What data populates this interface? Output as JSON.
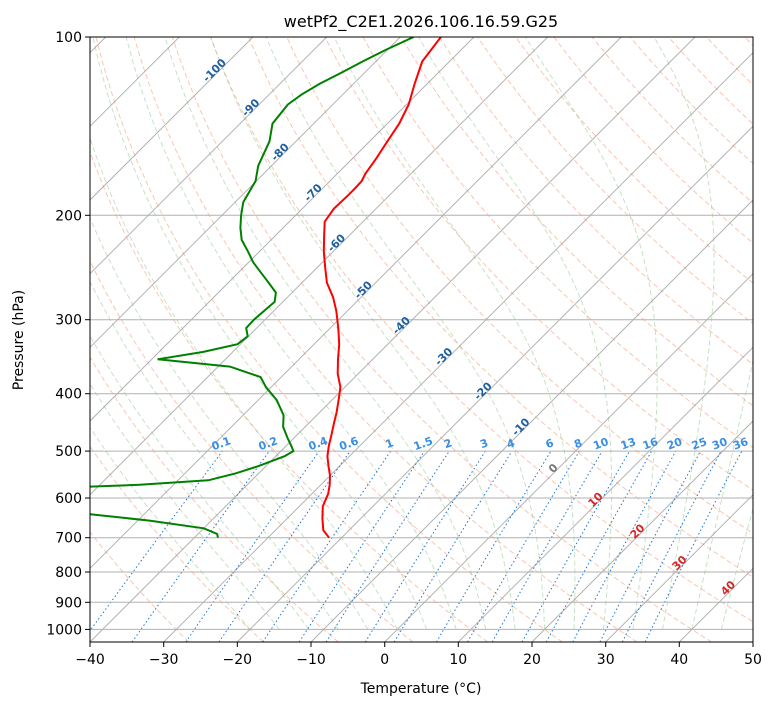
{
  "chart_data": {
    "type": "line",
    "title": "wetPf2_C2E1.2026.106.16.59.G25",
    "xlabel": "Temperature (°C)",
    "ylabel": "Pressure (hPa)",
    "xlim": [
      -40,
      50
    ],
    "ylim": [
      1050,
      100
    ],
    "y_scale": "log",
    "x_ticks": [
      -40,
      -30,
      -20,
      -10,
      0,
      10,
      20,
      30,
      40,
      50
    ],
    "x_tick_labels": [
      "−40",
      "−30",
      "−20",
      "−10",
      "0",
      "10",
      "20",
      "30",
      "40",
      "50"
    ],
    "y_ticks": [
      100,
      200,
      300,
      400,
      500,
      600,
      700,
      800,
      900,
      1000
    ],
    "y_tick_labels": [
      "100",
      "200",
      "300",
      "400",
      "500",
      "600",
      "700",
      "800",
      "900",
      "1000"
    ],
    "grid": true,
    "series": [
      {
        "color": "#ff0000",
        "points": [
          [
            -21.7,
            700
          ],
          [
            -23.5,
            680
          ],
          [
            -25.2,
            650
          ],
          [
            -26.8,
            620
          ],
          [
            -27.8,
            590
          ],
          [
            -28.8,
            570
          ],
          [
            -30.0,
            550
          ],
          [
            -31.5,
            530
          ],
          [
            -33.0,
            510
          ],
          [
            -34.2,
            490
          ],
          [
            -35.3,
            470
          ],
          [
            -36.5,
            450
          ],
          [
            -37.7,
            430
          ],
          [
            -39.1,
            410
          ],
          [
            -40.6,
            390
          ],
          [
            -42.8,
            370
          ],
          [
            -44.7,
            350
          ],
          [
            -46.6,
            330
          ],
          [
            -48.9,
            310
          ],
          [
            -51.5,
            290
          ],
          [
            -53.8,
            275
          ],
          [
            -56.6,
            260
          ],
          [
            -58.9,
            245
          ],
          [
            -61.3,
            230
          ],
          [
            -63.6,
            215
          ],
          [
            -65.2,
            205
          ],
          [
            -65.7,
            195
          ],
          [
            -65.6,
            185
          ],
          [
            -65.6,
            180
          ],
          [
            -65.7,
            175
          ],
          [
            -66.2,
            170
          ],
          [
            -66.8,
            160
          ],
          [
            -67.6,
            150
          ],
          [
            -68.4,
            140
          ],
          [
            -69.7,
            130
          ],
          [
            -71.7,
            120
          ],
          [
            -73.7,
            110
          ],
          [
            -74.5,
            100
          ]
        ]
      },
      {
        "color": "#008000",
        "points": [
          [
            -36.8,
            700
          ],
          [
            -37.4,
            690
          ],
          [
            -40.0,
            675
          ],
          [
            -48.4,
            655
          ],
          [
            -56.8,
            640
          ],
          [
            -63.2,
            628
          ],
          [
            -65.1,
            612
          ],
          [
            -64.2,
            600
          ],
          [
            -65.1,
            590
          ],
          [
            -67.1,
            578
          ],
          [
            -54.6,
            570
          ],
          [
            -45.9,
            560
          ],
          [
            -43.1,
            545
          ],
          [
            -41.0,
            530
          ],
          [
            -38.8,
            510
          ],
          [
            -38.3,
            500
          ],
          [
            -39.3,
            490
          ],
          [
            -40.9,
            475
          ],
          [
            -43.0,
            455
          ],
          [
            -44.5,
            435
          ],
          [
            -47.5,
            410
          ],
          [
            -50.7,
            390
          ],
          [
            -52.8,
            375
          ],
          [
            -58.4,
            360
          ],
          [
            -69.2,
            350
          ],
          [
            -64.0,
            340
          ],
          [
            -60.4,
            330
          ],
          [
            -60.1,
            320
          ],
          [
            -61.4,
            310
          ],
          [
            -61.5,
            300
          ],
          [
            -61.3,
            290
          ],
          [
            -61.1,
            280
          ],
          [
            -62.2,
            270
          ],
          [
            -64.5,
            260
          ],
          [
            -66.9,
            250
          ],
          [
            -69.4,
            240
          ],
          [
            -71.6,
            230
          ],
          [
            -74.0,
            220
          ],
          [
            -75.8,
            210
          ],
          [
            -77.4,
            200
          ],
          [
            -78.9,
            190
          ],
          [
            -80.1,
            175
          ],
          [
            -81.8,
            165
          ],
          [
            -83.6,
            150
          ],
          [
            -85.6,
            140
          ],
          [
            -86.1,
            130
          ],
          [
            -85.6,
            125
          ],
          [
            -84.6,
            120
          ],
          [
            -83.2,
            115
          ],
          [
            -81.8,
            110
          ],
          [
            -80.2,
            105
          ],
          [
            -78.2,
            100
          ]
        ]
      }
    ],
    "isotherm_labels": [
      "-100",
      "-90",
      "-80",
      "-70",
      "-60",
      "-50",
      "-40",
      "-30",
      "-20",
      "-10",
      "0",
      "10",
      "20",
      "30",
      "40"
    ],
    "mixing_ratio_labels": [
      "0.1",
      "0.2",
      "0.4",
      "0.6",
      "1",
      "1.5",
      "2",
      "3",
      "4",
      "6",
      "8",
      "10",
      "13",
      "16",
      "20",
      "25",
      "30",
      "36"
    ],
    "mixing_ratio_values": [
      0.1,
      0.2,
      0.4,
      0.6,
      1,
      1.5,
      2,
      3,
      4,
      6,
      8,
      10,
      13,
      16,
      20,
      25,
      30,
      36
    ]
  }
}
